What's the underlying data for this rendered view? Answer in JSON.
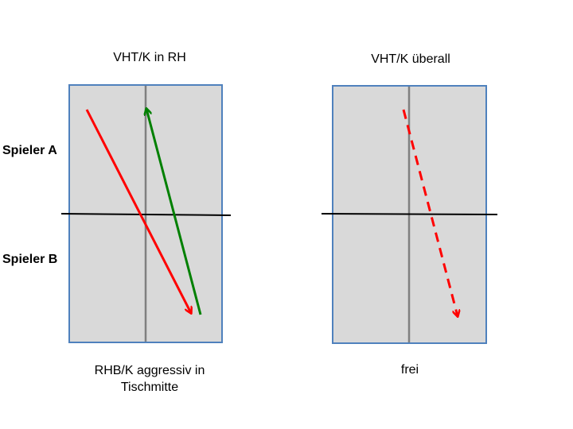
{
  "left_panel": {
    "title": "VHT/K in RH",
    "caption_line1": "RHB/K aggressiv in",
    "caption_line2": "Tischmitte"
  },
  "right_panel": {
    "title": "VHT/K überall",
    "caption": "frei"
  },
  "players": {
    "top": "Spieler A",
    "bottom": "Spieler B"
  },
  "colors": {
    "table_fill": "#d9d9d9",
    "table_border": "#4f81bd",
    "center_line": "#808080",
    "net": "#000000",
    "arrow_red": "#ff0000",
    "arrow_green": "#008000"
  }
}
